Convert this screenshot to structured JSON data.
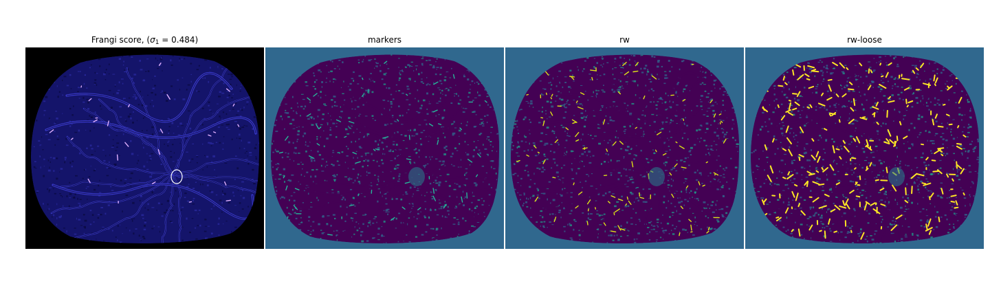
{
  "panels": [
    {
      "id": "frangi",
      "title_prefix": "Frangi score, (",
      "title_symbol": "σ",
      "title_subscript": "1",
      "title_suffix": " = 0.484)",
      "colormap": "gnuplot2",
      "background_color": "#000000",
      "vessel_color": "#23238c",
      "highlight_color": "#e0b0ff"
    },
    {
      "id": "markers",
      "title": "markers",
      "colormap": "viridis",
      "background_color": "#30688e",
      "vessel_color": "#440154",
      "highlight_color": "#26b89a"
    },
    {
      "id": "rw",
      "title": "rw",
      "colormap": "viridis",
      "background_color": "#30688e",
      "vessel_color": "#440154",
      "highlight_color": "#dde318"
    },
    {
      "id": "rw-loose",
      "title": "rw-loose",
      "colormap": "viridis",
      "background_color": "#30688e",
      "vessel_color": "#440154",
      "highlight_color": "#fde725"
    }
  ]
}
